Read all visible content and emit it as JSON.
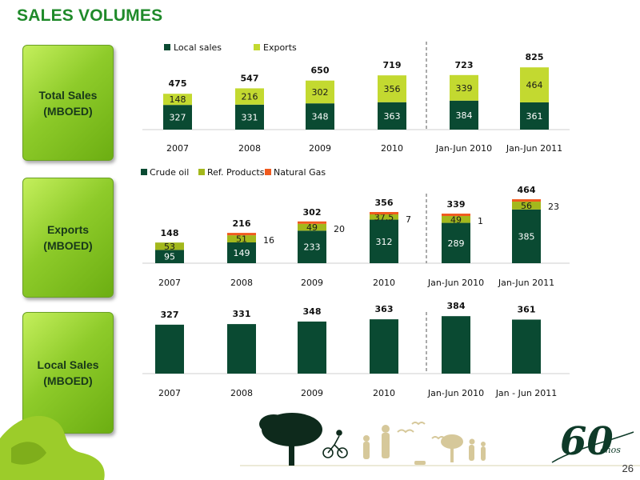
{
  "page_title": "SALES VOLUMES",
  "page_number": "26",
  "row_labels": {
    "total": "Total Sales\n(MBOED)",
    "exports": "Exports\n(MBOED)",
    "local": "Local Sales\n(MBOED)"
  },
  "logo_text": "60 años",
  "colors": {
    "title_green": "#1f8a2a",
    "dark_green": "#0a4a32",
    "lime": "#c3d930",
    "olive": "#a3b81c",
    "orange": "#f05a1e",
    "box_green": "#8ecb2a"
  },
  "chart_data": [
    {
      "type": "bar",
      "stacked": true,
      "categories": [
        "2007",
        "2008",
        "2009",
        "2010",
        "Jan-Jun 2010",
        "Jan-Jun 2011"
      ],
      "series": [
        {
          "name": "Local sales",
          "values": [
            327,
            331,
            348,
            363,
            384,
            361
          ],
          "color": "#0a4a32"
        },
        {
          "name": "Exports",
          "values": [
            148,
            216,
            302,
            356,
            339,
            464
          ],
          "color": "#c3d930"
        }
      ],
      "totals": [
        475,
        547,
        650,
        719,
        723,
        825
      ],
      "legend": "top",
      "separator_after_index": 3
    },
    {
      "type": "bar",
      "stacked": true,
      "categories": [
        "2007",
        "2008",
        "2009",
        "2010",
        "Jan-Jun 2010",
        "Jan-Jun 2011"
      ],
      "series": [
        {
          "name": "Crude oil",
          "values": [
            95,
            149,
            233,
            312,
            289,
            385
          ],
          "color": "#0a4a32"
        },
        {
          "name": "Ref. Products",
          "values": [
            53,
            51,
            49,
            37.5,
            49,
            56
          ],
          "color": "#a3b81c"
        },
        {
          "name": "Natural Gas",
          "values": [
            0,
            16,
            20,
            7,
            1,
            23
          ],
          "color": "#f05a1e"
        }
      ],
      "totals": [
        148,
        216,
        302,
        356,
        339,
        464
      ],
      "gas_labels": [
        "",
        "16",
        "20",
        "7",
        "1",
        "23"
      ],
      "legend": "top",
      "separator_after_index": 3
    },
    {
      "type": "bar",
      "categories": [
        "2007",
        "2008",
        "2009",
        "2010",
        "Jan-Jun 2010",
        "Jan - Jun 2011"
      ],
      "values": [
        327,
        331,
        348,
        363,
        384,
        361
      ],
      "color": "#0a4a32",
      "separator_after_index": 3
    }
  ]
}
